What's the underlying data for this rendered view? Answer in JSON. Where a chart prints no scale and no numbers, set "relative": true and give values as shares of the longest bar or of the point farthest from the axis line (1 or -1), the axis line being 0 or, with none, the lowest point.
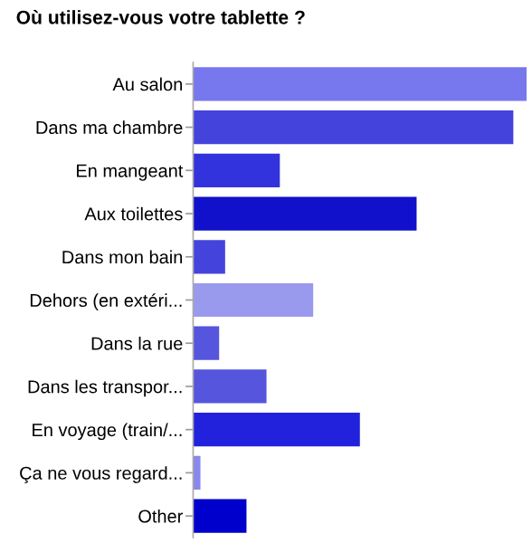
{
  "chart_data": {
    "type": "bar",
    "orientation": "horizontal",
    "relative": true,
    "title": "Où utilisez-vous votre tablette ?",
    "categories": [
      "Au salon",
      "Dans ma chambre",
      "En mangeant",
      "Aux toilettes",
      "Dans mon bain",
      "Dehors (en extéri...",
      "Dans la rue",
      "Dans les transpor...",
      "En voyage (train/...",
      "Ça ne vous regard...",
      "Other"
    ],
    "values": [
      1,
      0.96,
      0.26,
      0.67,
      0.096,
      0.36,
      0.078,
      0.22,
      0.5,
      0.022,
      0.16
    ],
    "colors": [
      "#7777ee",
      "#4444dd",
      "#3333dd",
      "#1111cc",
      "#4444dd",
      "#9999ee",
      "#5555dd",
      "#5555dd",
      "#2222dd",
      "#8888ee",
      "#0000cc"
    ],
    "grid": false,
    "legend": false
  }
}
